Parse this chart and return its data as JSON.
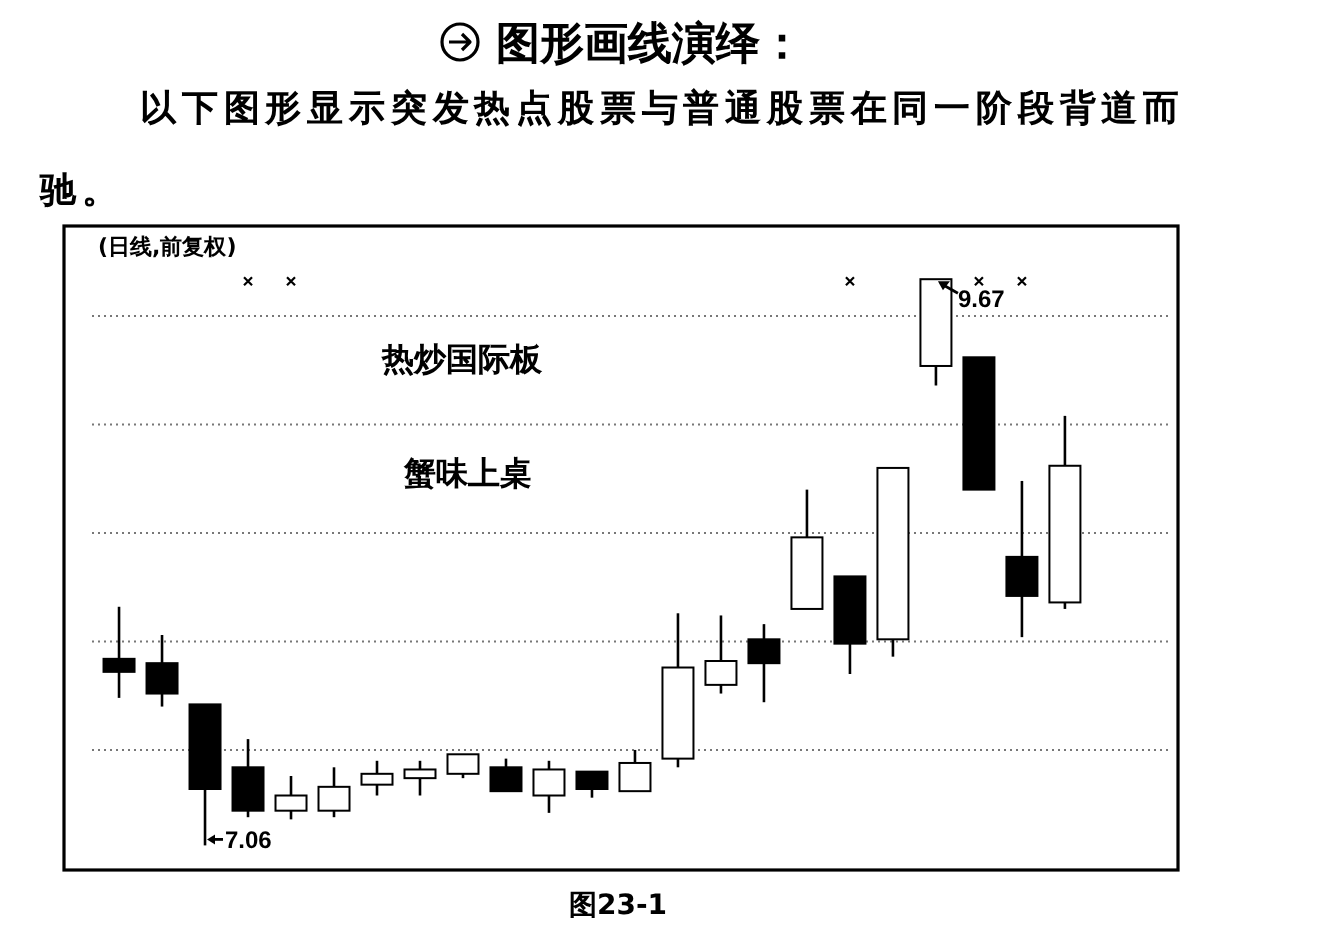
{
  "chart_data": {
    "type": "candlestick",
    "title": "图形画线演绎：",
    "subtitle": "以下图形显示突发热点股票与普通股票在同一阶段背道而驰。",
    "categories": [
      null,
      null,
      null,
      null,
      null,
      null,
      null,
      null,
      null,
      null,
      null,
      null,
      null,
      null,
      null,
      null,
      null,
      null,
      null,
      null,
      null,
      null,
      null
    ],
    "ohlc": [
      [
        7.92,
        8.16,
        7.74,
        7.86
      ],
      [
        7.9,
        8.03,
        7.7,
        7.76
      ],
      [
        7.71,
        7.71,
        7.06,
        7.32
      ],
      [
        7.42,
        7.55,
        7.19,
        7.22
      ],
      [
        7.22,
        7.38,
        7.18,
        7.29
      ],
      [
        7.22,
        7.42,
        7.19,
        7.33
      ],
      [
        7.34,
        7.45,
        7.29,
        7.39
      ],
      [
        7.37,
        7.45,
        7.29,
        7.41
      ],
      [
        7.39,
        7.48,
        7.37,
        7.48
      ],
      [
        7.42,
        7.46,
        7.31,
        7.31
      ],
      [
        7.29,
        7.45,
        7.21,
        7.41
      ],
      [
        7.4,
        7.4,
        7.28,
        7.32
      ],
      [
        7.31,
        7.5,
        7.31,
        7.44
      ],
      [
        7.46,
        8.13,
        7.42,
        7.88
      ],
      [
        7.8,
        8.12,
        7.76,
        7.91
      ],
      [
        8.01,
        8.08,
        7.72,
        7.9
      ],
      [
        8.15,
        8.7,
        8.15,
        8.48
      ],
      [
        8.3,
        8.3,
        7.85,
        7.99
      ],
      [
        8.01,
        8.8,
        7.93,
        8.8
      ],
      [
        9.27,
        9.67,
        9.18,
        9.67
      ],
      [
        9.31,
        9.31,
        8.7,
        8.7
      ],
      [
        8.39,
        8.74,
        8.02,
        8.21
      ],
      [
        8.18,
        9.04,
        8.15,
        8.81
      ]
    ],
    "color": "#000000",
    "colors": [
      "#000000",
      "#000000",
      "#000000",
      "#000000",
      "#ffffff",
      "#ffffff",
      "#ffffff",
      "#ffffff",
      "#ffffff",
      "#000000",
      "#ffffff",
      "#000000",
      "#ffffff",
      "#ffffff",
      "#ffffff",
      "#000000",
      "#ffffff",
      "#000000",
      "#ffffff",
      "#ffffff",
      "#000000",
      "#000000",
      "#ffffff"
    ],
    "yticks": [
      {
        "value": 7.5,
        "label": null
      },
      {
        "value": 8,
        "label": null
      },
      {
        "value": 8.5,
        "label": null
      },
      {
        "value": 9,
        "label": null
      },
      {
        "value": 9.5,
        "label": null
      }
    ],
    "grid": "y",
    "tick_labels": false,
    "annotations": [
      "(日线,前复权)",
      "热炒国际板",
      "蟹味上桌",
      "9.67",
      "7.06",
      "图23-1"
    ]
  }
}
